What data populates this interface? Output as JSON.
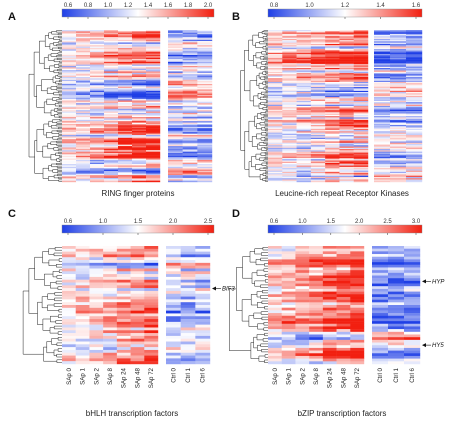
{
  "figure": {
    "colormap": {
      "low": "#1f3fe6",
      "mid": "#ffffff",
      "high": "#f21f10"
    },
    "panels": [
      {
        "letter": "A",
        "caption": "RING finger proteins",
        "scale_ticks": [
          "0.6",
          "0.8",
          "1.0",
          "1.2",
          "1.4",
          "1.6",
          "1.8",
          "2.0"
        ],
        "rows": 110,
        "left_cols": 7,
        "right_cols": 3,
        "column_labels": [],
        "annotations": [],
        "palette_bias": 0.15
      },
      {
        "letter": "B",
        "caption": "Leucine-rich repeat Receptor Kinases",
        "scale_ticks": [
          "0.8",
          "1.0",
          "1.2",
          "1.4",
          "1.6"
        ],
        "rows": 120,
        "left_cols": 7,
        "right_cols": 3,
        "column_labels": [],
        "annotations": [],
        "palette_bias": 0.1
      },
      {
        "letter": "C",
        "caption": "bHLH transcription factors",
        "scale_ticks": [
          "0.6",
          "1.0",
          "1.5",
          "2.0",
          "2.5"
        ],
        "rows": 42,
        "left_cols": 7,
        "right_cols": 3,
        "column_labels": [
          "SAp 0",
          "SAp 1",
          "SAp 2",
          "SAp 8",
          "SAp 24",
          "SAp 48",
          "SAp 72",
          "Ctrl 0",
          "Ctrl 1",
          "Ctrl 6"
        ],
        "annotations": [
          {
            "label": "BIF3",
            "row_fraction": 0.36
          }
        ],
        "palette_bias": 0.2
      },
      {
        "letter": "D",
        "caption": "bZIP transcription factors",
        "scale_ticks": [
          "0.6",
          "1.0",
          "1.5",
          "2.0",
          "2.5",
          "3.0"
        ],
        "rows": 44,
        "left_cols": 7,
        "right_cols": 3,
        "column_labels": [
          "SAp 0",
          "SAp 1",
          "SAp 2",
          "SAp 8",
          "SAp 24",
          "SAp 48",
          "SAp 72",
          "Ctrl 0",
          "Ctrl 1",
          "Ctrl 6"
        ],
        "annotations": [
          {
            "label": "HYP",
            "row_fraction": 0.3
          },
          {
            "label": "HY5",
            "row_fraction": 0.84
          }
        ],
        "palette_bias": 0.2
      }
    ]
  },
  "chart_data": [
    {
      "type": "heatmap",
      "title": "RING finger proteins",
      "legend_ticks": [
        0.6,
        0.8,
        1.0,
        1.2,
        1.4,
        1.6,
        1.8,
        2.0
      ],
      "value_range": [
        0.6,
        2.0
      ],
      "groups": [
        "treatment (7 columns)",
        "control (3 columns)"
      ]
    },
    {
      "type": "heatmap",
      "title": "Leucine-rich repeat Receptor Kinases",
      "legend_ticks": [
        0.8,
        1.0,
        1.2,
        1.4,
        1.6
      ],
      "value_range": [
        0.8,
        1.6
      ],
      "groups": [
        "treatment (7 columns)",
        "control (3 columns)"
      ]
    },
    {
      "type": "heatmap",
      "title": "bHLH transcription factors",
      "legend_ticks": [
        0.6,
        1.0,
        1.5,
        2.0,
        2.5
      ],
      "value_range": [
        0.6,
        2.5
      ],
      "columns": [
        "SAp 0",
        "SAp 1",
        "SAp 2",
        "SAp 8",
        "SAp 24",
        "SAp 48",
        "SAp 72",
        "Ctrl 0",
        "Ctrl 1",
        "Ctrl 6"
      ],
      "labeled_rows": [
        "BIF3"
      ]
    },
    {
      "type": "heatmap",
      "title": "bZIP transcription factors",
      "legend_ticks": [
        0.6,
        1.0,
        1.5,
        2.0,
        2.5,
        3.0
      ],
      "value_range": [
        0.6,
        3.0
      ],
      "columns": [
        "SAp 0",
        "SAp 1",
        "SAp 2",
        "SAp 8",
        "SAp 24",
        "SAp 48",
        "SAp 72",
        "Ctrl 0",
        "Ctrl 1",
        "Ctrl 6"
      ],
      "labeled_rows": [
        "HYP",
        "HY5"
      ]
    }
  ]
}
